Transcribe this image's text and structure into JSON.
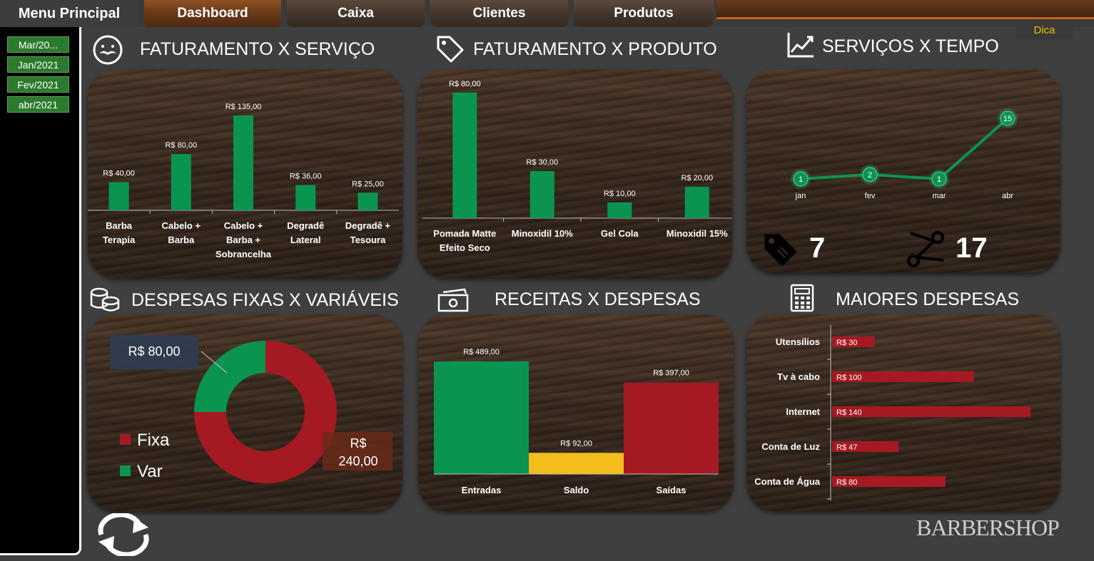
{
  "nav": {
    "menu_label": "Menu Principal",
    "tabs": [
      "Dashboard",
      "Caixa",
      "Clientes",
      "Produtos"
    ],
    "active_tab": "Dashboard"
  },
  "dica_label": "Dica",
  "months": [
    "Mar/20...",
    "Jan/2021",
    "Fev/2021",
    "abr/2021"
  ],
  "panels": {
    "faturamento_servico": {
      "title": "FATURAMENTO X SERVIÇO",
      "categories": [
        [
          "Barba",
          "Terapia"
        ],
        [
          "Cabelo +",
          "Barba"
        ],
        [
          "Cabelo +",
          "Barba +",
          "Sobrancelha"
        ],
        [
          "Degradê",
          "Lateral"
        ],
        [
          "Degradê +",
          "Tesoura"
        ]
      ],
      "values": [
        40,
        80,
        135,
        36,
        25
      ],
      "labels": [
        "R$ 40,00",
        "R$ 80,00",
        "R$ 135,00",
        "R$ 36,00",
        "R$ 25,00"
      ],
      "ymax": 135,
      "color": "#0b9450"
    },
    "faturamento_produto": {
      "title": "FATURAMENTO X PRODUTO",
      "categories": [
        [
          "Pomada Matte",
          "Efeito Seco"
        ],
        [
          "Minoxidil 10%"
        ],
        [
          "Gel Cola"
        ],
        [
          "Minoxidil 15%"
        ]
      ],
      "values": [
        80,
        30,
        10,
        20
      ],
      "labels": [
        "R$ 80,00",
        "R$ 30,00",
        "R$ 10,00",
        "R$ 20,00"
      ],
      "ymax": 80,
      "color": "#0b9450"
    },
    "servicos_tempo": {
      "title": "SERVIÇOS X TEMPO",
      "categories": [
        "jan",
        "fev",
        "mar",
        "abr"
      ],
      "values": [
        1,
        2,
        1,
        15
      ],
      "point_labels": [
        "1",
        "2",
        "1",
        "15"
      ],
      "ymax": 15,
      "color": "#0b9450",
      "kpi_tag": "7",
      "kpi_scissors": "17"
    },
    "despesas_fixas": {
      "title": "DESPESAS FIXAS X VARIÁVEIS",
      "slices": [
        {
          "name": "Fixa",
          "value": 240,
          "color": "#a51a22"
        },
        {
          "name": "Var",
          "value": 80,
          "color": "#0b9450"
        }
      ],
      "label_var": "R$ 80,00",
      "label_fixa_line1": "R$",
      "label_fixa_line2": "240,00"
    },
    "receitas_despesas": {
      "title": "RECEITAS X DESPESAS",
      "categories": [
        "Entradas",
        "Saldo",
        "Saídas"
      ],
      "values": [
        489,
        92,
        397
      ],
      "labels": [
        "R$ 489,00",
        "R$ 92,00",
        "R$ 397,00"
      ],
      "colors": [
        "#0b9450",
        "#f4bd1c",
        "#a51a22"
      ],
      "ymax": 489
    },
    "maiores_despesas": {
      "title": "MAIORES DESPESAS",
      "categories": [
        "Utensílios",
        "Tv à cabo",
        "Internet",
        "Conta de Luz",
        "Conta de Água"
      ],
      "values": [
        30,
        100,
        140,
        47,
        80
      ],
      "labels": [
        "R$ 30",
        "R$ 100",
        "R$ 140",
        "R$ 47",
        "R$ 80"
      ],
      "xmax": 140,
      "color": "#a51a22"
    }
  },
  "chart_data": [
    {
      "type": "bar",
      "title": "FATURAMENTO X SERVIÇO",
      "categories": [
        "Barba Terapia",
        "Cabelo + Barba",
        "Cabelo + Barba + Sobrancelha",
        "Degradê Lateral",
        "Degradê + Tesoura"
      ],
      "values": [
        40,
        80,
        135,
        36,
        25
      ]
    },
    {
      "type": "bar",
      "title": "FATURAMENTO X PRODUTO",
      "categories": [
        "Pomada Matte Efeito Seco",
        "Minoxidil 10%",
        "Gel Cola",
        "Minoxidil 15%"
      ],
      "values": [
        80,
        30,
        10,
        20
      ]
    },
    {
      "type": "line",
      "title": "SERVIÇOS X TEMPO",
      "x": [
        "jan",
        "fev",
        "mar",
        "abr"
      ],
      "y": [
        1,
        2,
        1,
        15
      ]
    },
    {
      "type": "pie",
      "title": "DESPESAS FIXAS X VARIÁVEIS",
      "categories": [
        "Fixa",
        "Var"
      ],
      "values": [
        240,
        80
      ]
    },
    {
      "type": "bar",
      "title": "RECEITAS X DESPESAS",
      "categories": [
        "Entradas",
        "Saldo",
        "Saídas"
      ],
      "values": [
        489,
        92,
        397
      ]
    },
    {
      "type": "bar",
      "title": "MAIORES DESPESAS",
      "orientation": "horizontal",
      "categories": [
        "Utensílios",
        "Tv à cabo",
        "Internet",
        "Conta de Luz",
        "Conta de Água"
      ],
      "values": [
        30,
        100,
        140,
        47,
        80
      ]
    }
  ],
  "logo_text": "BARBERSHOP"
}
